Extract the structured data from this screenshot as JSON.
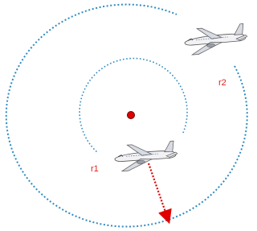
{
  "inner_circle": {
    "label": "r1"
  },
  "outer_circle": {
    "label": "r2"
  }
}
